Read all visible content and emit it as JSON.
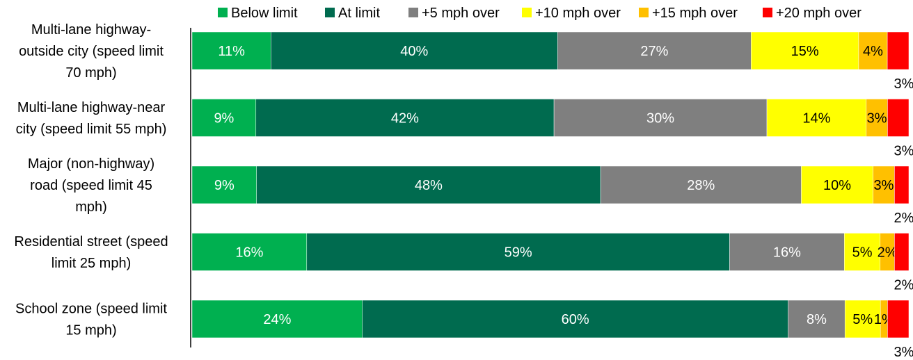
{
  "chart_data": {
    "type": "bar",
    "orientation": "horizontal",
    "stacked": "percent",
    "legend_position": "top",
    "categories": [
      [
        "Multi-lane highway-",
        "outside city (speed limit",
        "70 mph)"
      ],
      [
        "Multi-lane highway-near",
        "city (speed limit 55 mph)"
      ],
      [
        "Major (non-highway)",
        "road (speed limit 45",
        "mph)"
      ],
      [
        "Residential street (speed",
        "limit 25 mph)"
      ],
      [
        "School zone (speed limit",
        "15 mph)"
      ]
    ],
    "series": [
      {
        "name": "Below limit",
        "color": "#00b050",
        "label_color": "#ffffff",
        "values": [
          11,
          9,
          9,
          16,
          24
        ]
      },
      {
        "name": "At limit",
        "color": "#006b4f",
        "label_color": "#ffffff",
        "values": [
          40,
          42,
          48,
          59,
          60
        ]
      },
      {
        "name": "+5 mph over",
        "color": "#7f7f7f",
        "label_color": "#ffffff",
        "values": [
          27,
          30,
          28,
          16,
          8
        ]
      },
      {
        "name": "+10 mph over",
        "color": "#ffff00",
        "label_color": "#000000",
        "values": [
          15,
          14,
          10,
          5,
          5
        ]
      },
      {
        "name": "+15 mph over",
        "color": "#ffc000",
        "label_color": "#000000",
        "values": [
          4,
          3,
          3,
          2,
          1
        ]
      },
      {
        "name": "+20 mph over",
        "color": "#ff0000",
        "label_color": "#000000",
        "values": [
          3,
          3,
          2,
          2,
          3
        ]
      }
    ],
    "value_suffix": "%"
  }
}
